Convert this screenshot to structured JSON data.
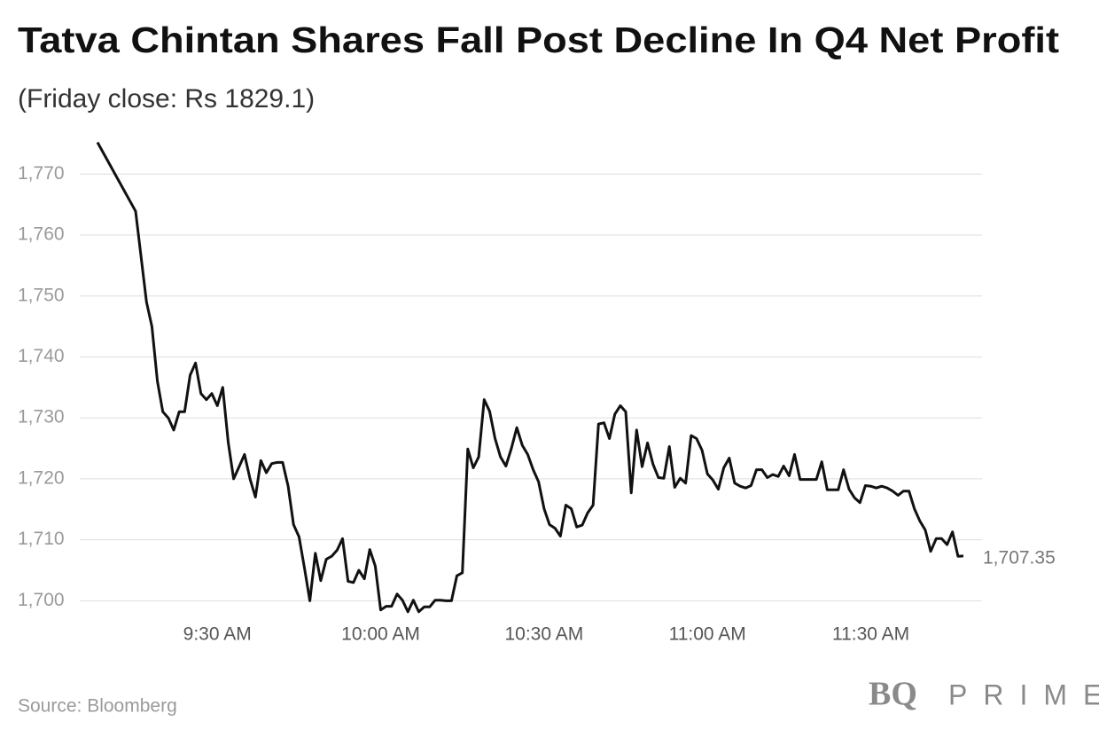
{
  "chart_data": {
    "type": "line",
    "title": "Tatva Chintan Shares Fall Post Decline In Q4 Net Profit",
    "subtitle": "(Friday close: Rs 1829.1)",
    "source": "Source: Bloomberg",
    "brand": {
      "mark": "BQ",
      "name": "PRIME"
    },
    "color": "#111111",
    "grid": true,
    "x": [
      "9:08 AM",
      "9:15 AM",
      "9:17 AM",
      "9:18 AM",
      "9:19 AM",
      "9:20 AM",
      "9:21 AM",
      "9:22 AM",
      "9:23 AM",
      "9:24 AM",
      "9:25 AM",
      "9:26 AM",
      "9:27 AM",
      "9:28 AM",
      "9:29 AM",
      "9:30 AM",
      "9:31 AM",
      "9:32 AM",
      "9:33 AM",
      "9:34 AM",
      "9:35 AM",
      "9:36 AM",
      "9:37 AM",
      "9:38 AM",
      "9:39 AM",
      "9:40 AM",
      "9:41 AM",
      "9:42 AM",
      "9:43 AM",
      "9:44 AM",
      "9:45 AM",
      "9:46 AM",
      "9:47 AM",
      "9:48 AM",
      "9:49 AM",
      "9:50 AM",
      "9:51 AM",
      "9:52 AM",
      "9:53 AM",
      "9:54 AM",
      "9:55 AM",
      "9:56 AM",
      "9:57 AM",
      "9:58 AM",
      "9:59 AM",
      "10:00 AM",
      "10:01 AM",
      "10:02 AM",
      "10:03 AM",
      "10:04 AM",
      "10:05 AM",
      "10:06 AM",
      "10:07 AM",
      "10:08 AM",
      "10:09 AM",
      "10:10 AM",
      "10:11 AM",
      "10:12 AM",
      "10:13 AM",
      "10:14 AM",
      "10:15 AM",
      "10:16 AM",
      "10:17 AM",
      "10:18 AM",
      "10:19 AM",
      "10:20 AM",
      "10:21 AM",
      "10:22 AM",
      "10:23 AM",
      "10:24 AM",
      "10:25 AM",
      "10:26 AM",
      "10:27 AM",
      "10:28 AM",
      "10:29 AM",
      "10:30 AM",
      "10:31 AM",
      "10:32 AM",
      "10:33 AM",
      "10:34 AM",
      "10:35 AM",
      "10:36 AM",
      "10:37 AM",
      "10:38 AM",
      "10:39 AM",
      "10:40 AM",
      "10:41 AM",
      "10:42 AM",
      "10:43 AM",
      "10:44 AM",
      "10:45 AM",
      "10:46 AM",
      "10:47 AM",
      "10:48 AM",
      "10:49 AM",
      "10:50 AM",
      "10:51 AM",
      "10:52 AM",
      "10:53 AM",
      "10:54 AM",
      "10:55 AM",
      "10:56 AM",
      "10:57 AM",
      "10:58 AM",
      "10:59 AM",
      "11:00 AM",
      "11:01 AM",
      "11:02 AM",
      "11:03 AM",
      "11:04 AM",
      "11:05 AM",
      "11:06 AM",
      "11:07 AM",
      "11:08 AM",
      "11:09 AM",
      "11:10 AM",
      "11:11 AM",
      "11:12 AM",
      "11:13 AM",
      "11:14 AM",
      "11:15 AM",
      "11:16 AM",
      "11:17 AM",
      "11:18 AM",
      "11:19 AM",
      "11:20 AM",
      "11:21 AM",
      "11:22 AM",
      "11:23 AM",
      "11:24 AM",
      "11:25 AM",
      "11:26 AM",
      "11:27 AM",
      "11:28 AM",
      "11:29 AM",
      "11:30 AM",
      "11:31 AM",
      "11:32 AM",
      "11:33 AM",
      "11:34 AM",
      "11:35 AM",
      "11:36 AM",
      "11:37 AM",
      "11:38 AM",
      "11:39 AM",
      "11:40 AM",
      "11:41 AM",
      "11:42 AM",
      "11:43 AM",
      "11:44 AM",
      "11:45 AM",
      "11:46 AM",
      "11:47 AM"
    ],
    "values": [
      1775.2,
      1763.9,
      1749,
      1745,
      1736,
      1731,
      1730,
      1728,
      1731,
      1731,
      1737,
      1739,
      1734,
      1733,
      1734,
      1732,
      1735,
      1726,
      1720,
      1722,
      1724,
      1720,
      1717,
      1723,
      1721,
      1722.5,
      1722.7,
      1722.7,
      1718.8,
      1712.5,
      1710.5,
      1705.4,
      1700,
      1707.8,
      1703.3,
      1706.8,
      1707.3,
      1708.3,
      1710.2,
      1703.2,
      1703,
      1705,
      1703.6,
      1708.4,
      1705.7,
      1698.5,
      1699.1,
      1699.1,
      1701.1,
      1700.1,
      1698.2,
      1700.1,
      1698.2,
      1699,
      1699,
      1700.1,
      1700.1,
      1700,
      1700,
      1704.1,
      1704.6,
      1724.9,
      1721.8,
      1723.6,
      1733,
      1731.1,
      1726.6,
      1723.6,
      1722.1,
      1725,
      1728.4,
      1725.5,
      1724,
      1721.5,
      1719.5,
      1715.1,
      1712.5,
      1711.9,
      1710.6,
      1715.7,
      1715.1,
      1712.1,
      1712.4,
      1714.4,
      1715.7,
      1729,
      1729.2,
      1726.6,
      1730.6,
      1732,
      1731,
      1717.7,
      1728,
      1722,
      1725.9,
      1722.4,
      1720.2,
      1720.1,
      1725.3,
      1718.6,
      1720.1,
      1719.3,
      1727.1,
      1726.6,
      1724.7,
      1720.8,
      1719.8,
      1718.3,
      1721.8,
      1723.4,
      1719.3,
      1718.8,
      1718.5,
      1718.9,
      1721.5,
      1721.5,
      1720.2,
      1720.7,
      1720.4,
      1722.1,
      1720.5,
      1724,
      1719.9,
      1719.9,
      1719.9,
      1719.9,
      1722.8,
      1718.2,
      1718.2,
      1718.2,
      1721.5,
      1718.3,
      1716.9,
      1716.1,
      1718.9,
      1718.8,
      1718.5,
      1718.8,
      1718.5,
      1718,
      1717.3,
      1718,
      1718,
      1715.1,
      1713.1,
      1711.6,
      1708.1,
      1710.2,
      1710.2,
      1709.2,
      1711.3,
      1707.3,
      1707.35
    ],
    "xlim": [
      "9:08 AM",
      "11:47 AM"
    ],
    "xticks": [
      "9:30 AM",
      "10:00 AM",
      "10:30 AM",
      "11:00 AM",
      "11:30 AM"
    ],
    "ylim": [
      1697,
      1776
    ],
    "yticks": [
      {
        "value": 1700,
        "label": "1,700"
      },
      {
        "value": 1710,
        "label": "1,710"
      },
      {
        "value": 1720,
        "label": "1,720"
      },
      {
        "value": 1730,
        "label": "1,730"
      },
      {
        "value": 1740,
        "label": "1,740"
      },
      {
        "value": 1750,
        "label": "1,750"
      },
      {
        "value": 1760,
        "label": "1,760"
      },
      {
        "value": 1770,
        "label": "1,770"
      }
    ],
    "annotations": [
      {
        "x": "11:47 AM",
        "y": 1707.35,
        "label": "1,707.35"
      }
    ]
  }
}
